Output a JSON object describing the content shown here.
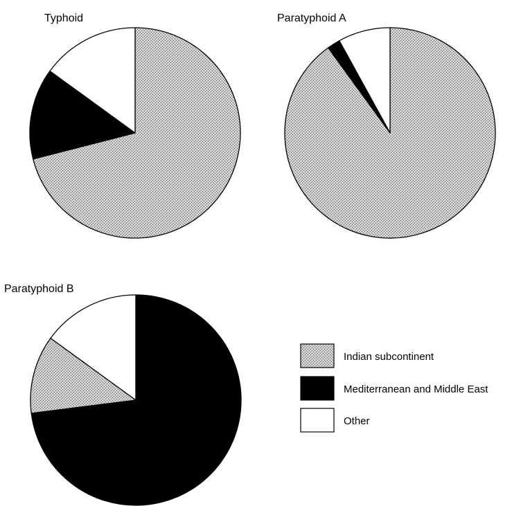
{
  "palette": {
    "Indian subcontinent": "stipple",
    "Mediterranean and Middle East": "#000000",
    "Other": "#ffffff"
  },
  "legend": {
    "placement": "right",
    "entries": [
      {
        "label": "Indian subcontinent",
        "fill": "stipple"
      },
      {
        "label": "Mediterranean and Middle East",
        "fill": "#000000"
      },
      {
        "label": "Other",
        "fill": "#ffffff"
      }
    ]
  },
  "chart_data": [
    {
      "type": "pie",
      "title": "Typhoid",
      "start_angle_deg": 0,
      "direction": "clockwise",
      "slices": [
        {
          "label": "Indian subcontinent",
          "value": 71
        },
        {
          "label": "Mediterranean and Middle East",
          "value": 14
        },
        {
          "label": "Other",
          "value": 15
        }
      ]
    },
    {
      "type": "pie",
      "title": "Paratyphoid A",
      "start_angle_deg": 0,
      "direction": "clockwise",
      "slices": [
        {
          "label": "Indian subcontinent",
          "value": 90
        },
        {
          "label": "Mediterranean and Middle East",
          "value": 2
        },
        {
          "label": "Other",
          "value": 8
        }
      ]
    },
    {
      "type": "pie",
      "title": "Paratyphoid B",
      "start_angle_deg": 0,
      "direction": "clockwise",
      "slices": [
        {
          "label": "Mediterranean and Middle East",
          "value": 73
        },
        {
          "label": "Indian subcontinent",
          "value": 12
        },
        {
          "label": "Other",
          "value": 15
        }
      ]
    }
  ]
}
